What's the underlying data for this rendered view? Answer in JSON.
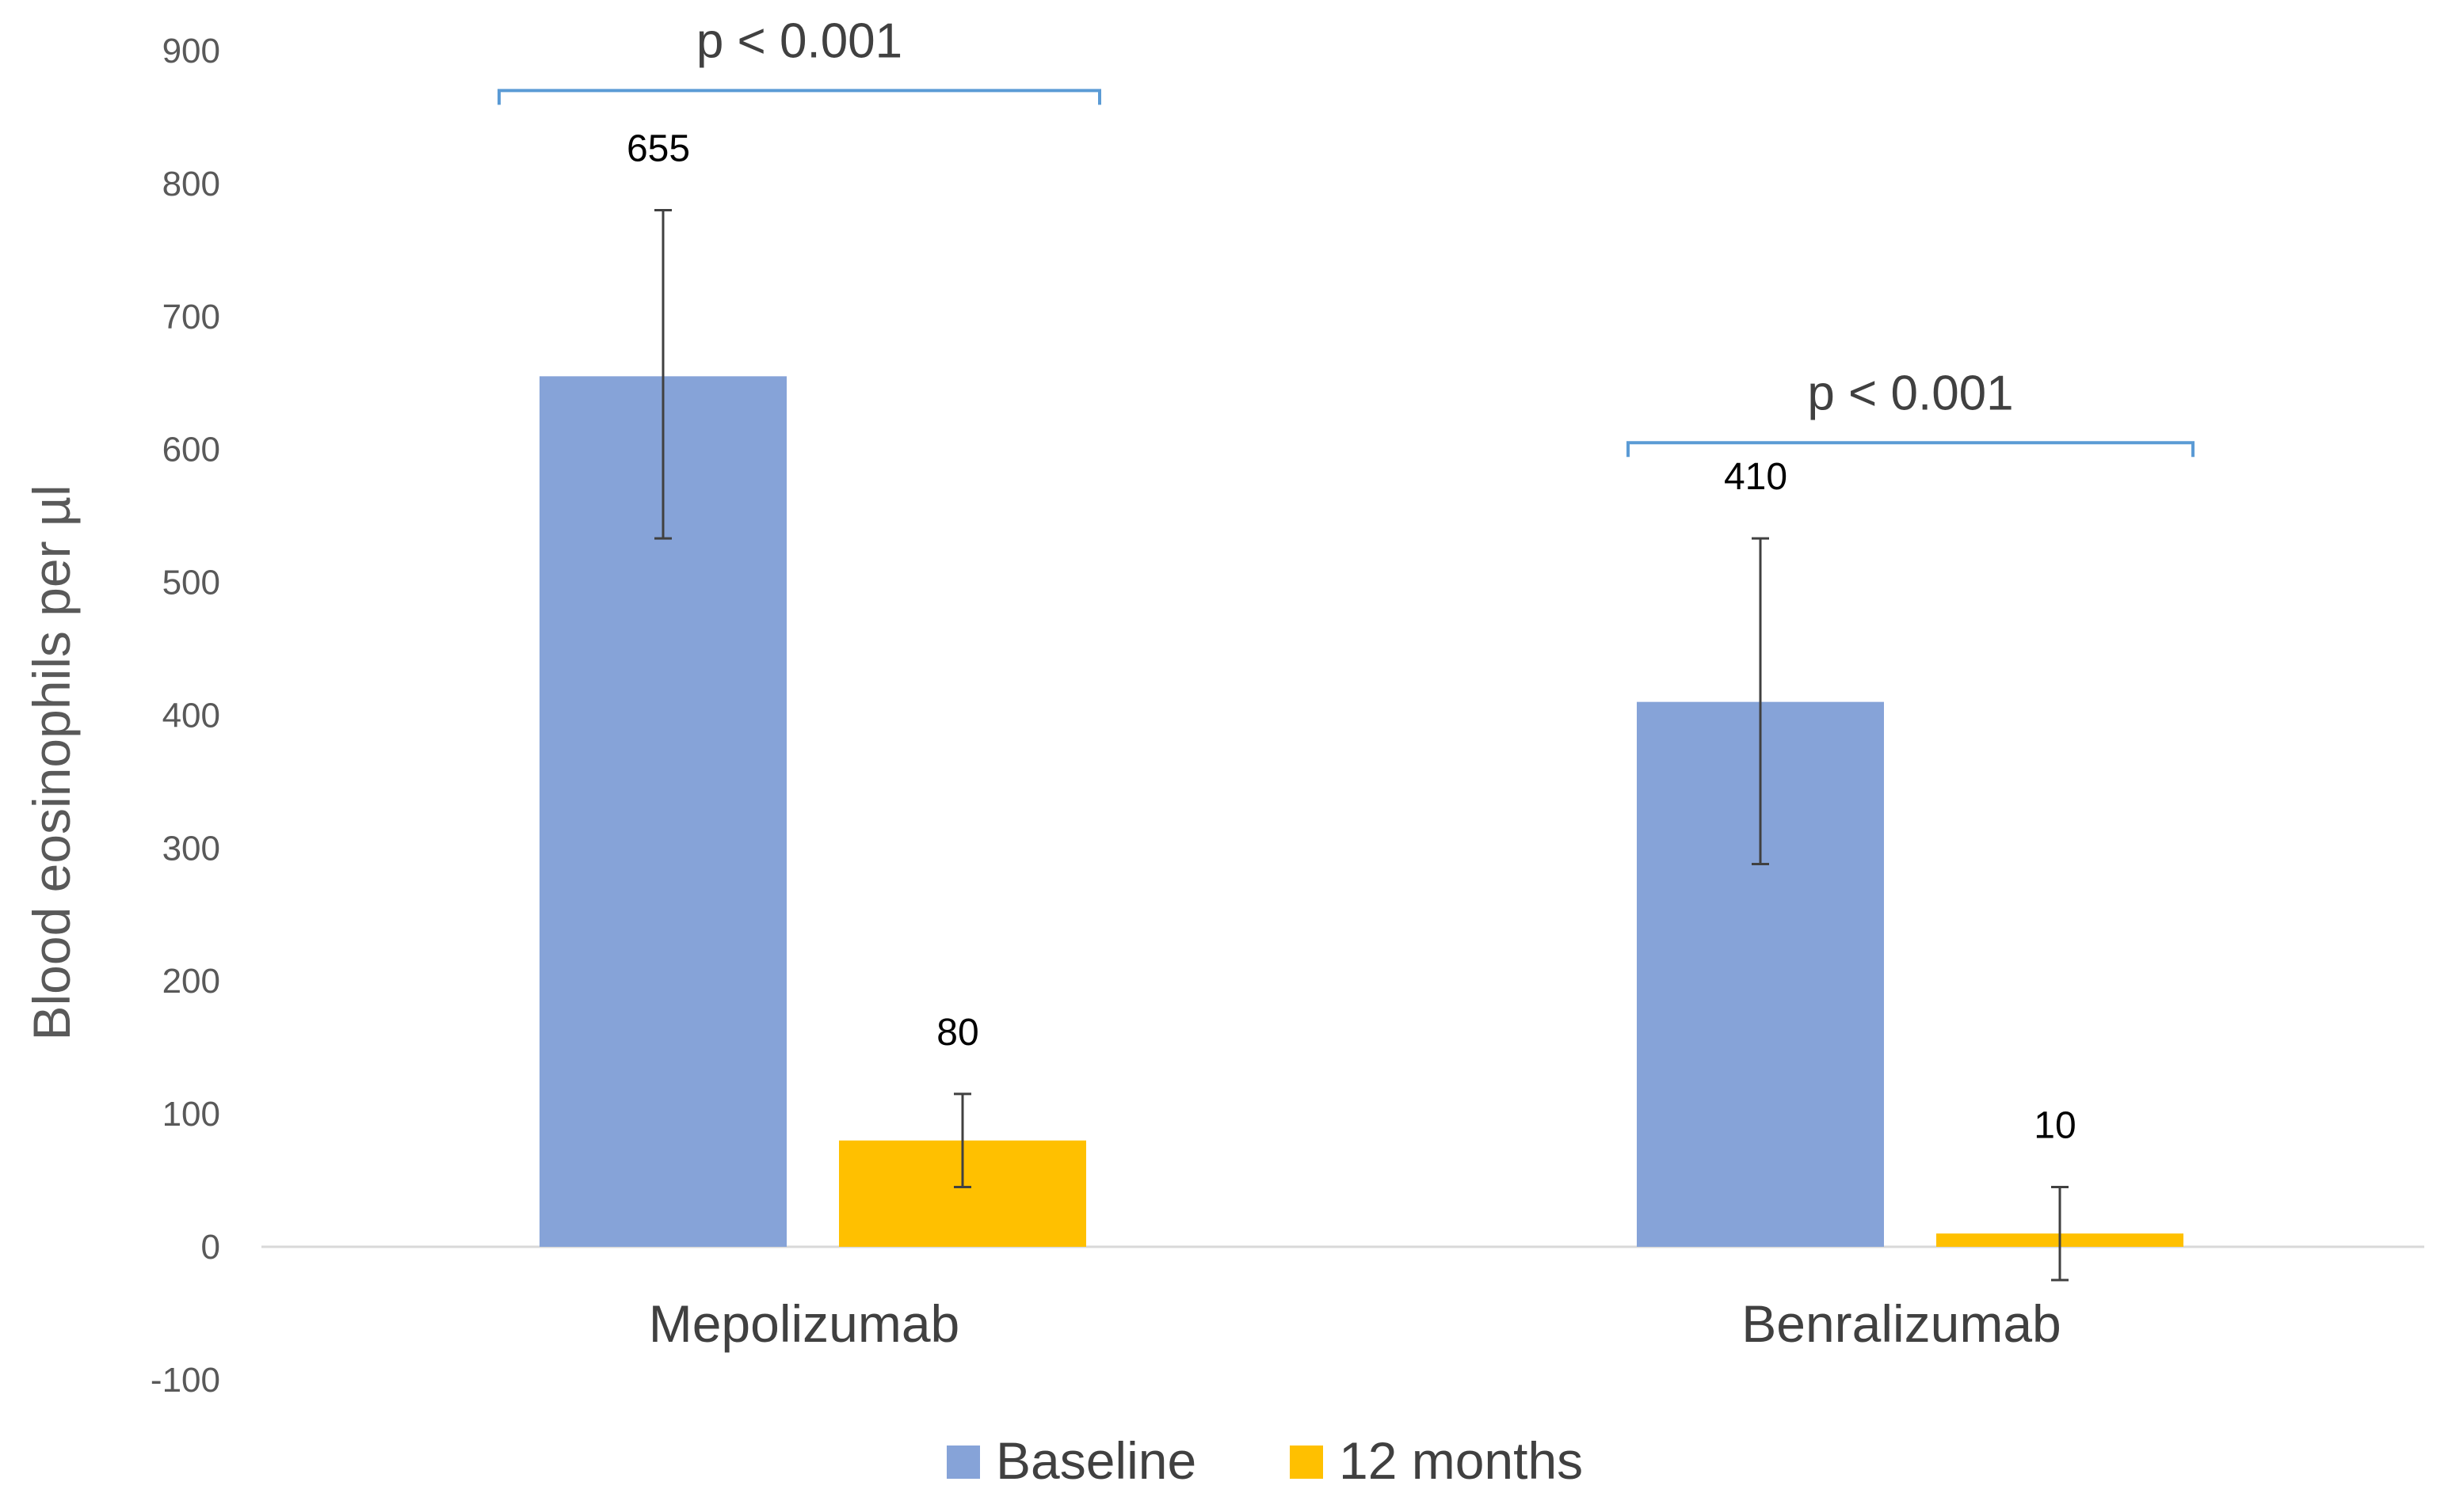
{
  "chart_data": {
    "type": "bar",
    "title": "",
    "xlabel": "",
    "ylabel": "Blood eosinophils per µl",
    "ylim": [
      -100,
      900
    ],
    "yticks": [
      -100,
      0,
      100,
      200,
      300,
      400,
      500,
      600,
      700,
      800,
      900
    ],
    "grid": false,
    "legend_position": "bottom-center",
    "categories": [
      "Mepolizumab",
      "Benralizumab"
    ],
    "series": [
      {
        "name": "Baseline",
        "color": "#86A3D8",
        "values": [
          655,
          410
        ],
        "error_low": [
          533,
          288
        ],
        "error_high": [
          780,
          533
        ]
      },
      {
        "name": "12 months",
        "color": "#FFC000",
        "values": [
          80,
          10
        ],
        "error_low": [
          45,
          -25
        ],
        "error_high": [
          115,
          45
        ]
      }
    ],
    "data_labels": [
      [
        "655",
        "410"
      ],
      [
        "80",
        "10"
      ]
    ],
    "annotations": [
      {
        "text": "p < 0.001",
        "category": "Mepolizumab",
        "bracket_value": 870,
        "color": "#5B9BD5"
      },
      {
        "text": "p < 0.001",
        "category": "Benralizumab",
        "bracket_value": 605,
        "color": "#5B9BD5"
      }
    ]
  }
}
